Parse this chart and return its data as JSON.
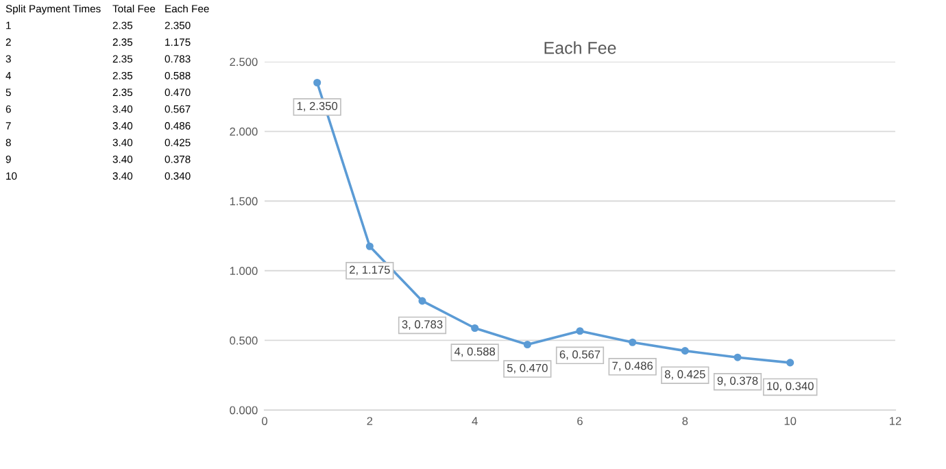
{
  "chart_data": {
    "type": "line",
    "title": "Each Fee",
    "x": [
      1,
      2,
      3,
      4,
      5,
      6,
      7,
      8,
      9,
      10
    ],
    "series": [
      {
        "color": "#5b9bd5",
        "values": [
          2.35,
          1.175,
          0.783,
          0.588,
          0.47,
          0.567,
          0.486,
          0.425,
          0.378,
          0.34
        ],
        "value_labels": [
          "1, 2.350",
          "2, 1.175",
          "3, 0.783",
          "4, 0.588",
          "5, 0.470",
          "6, 0.567",
          "7, 0.486",
          "8, 0.425",
          "9, 0.378",
          "10, 0.340"
        ]
      }
    ],
    "xlim": [
      0,
      12
    ],
    "xticks": [
      0,
      2,
      4,
      6,
      8,
      10,
      12
    ],
    "ylim": [
      0,
      2.5
    ],
    "yticks": [
      {
        "value": 0,
        "label": "0.000"
      },
      {
        "value": 0.5,
        "label": "0.500"
      },
      {
        "value": 1,
        "label": "1.000"
      },
      {
        "value": 1.5,
        "label": "1.500"
      },
      {
        "value": 2,
        "label": "2.000"
      },
      {
        "value": 2.5,
        "label": "2.500"
      }
    ],
    "grid": "y",
    "marker": "circle",
    "line_style": "solid",
    "annotations": [
      "Split Payment Times",
      "Total Fee",
      "Each Fee",
      "1",
      "2.35",
      "2.350",
      "2",
      "2.35",
      "1.175",
      "3",
      "2.35",
      "0.783",
      "4",
      "2.35",
      "0.588",
      "5",
      "2.35",
      "0.470",
      "6",
      "3.40",
      "0.567",
      "7",
      "3.40",
      "0.486",
      "8",
      "3.40",
      "0.425",
      "9",
      "3.40",
      "0.378",
      "10",
      "3.40",
      "0.340"
    ]
  }
}
